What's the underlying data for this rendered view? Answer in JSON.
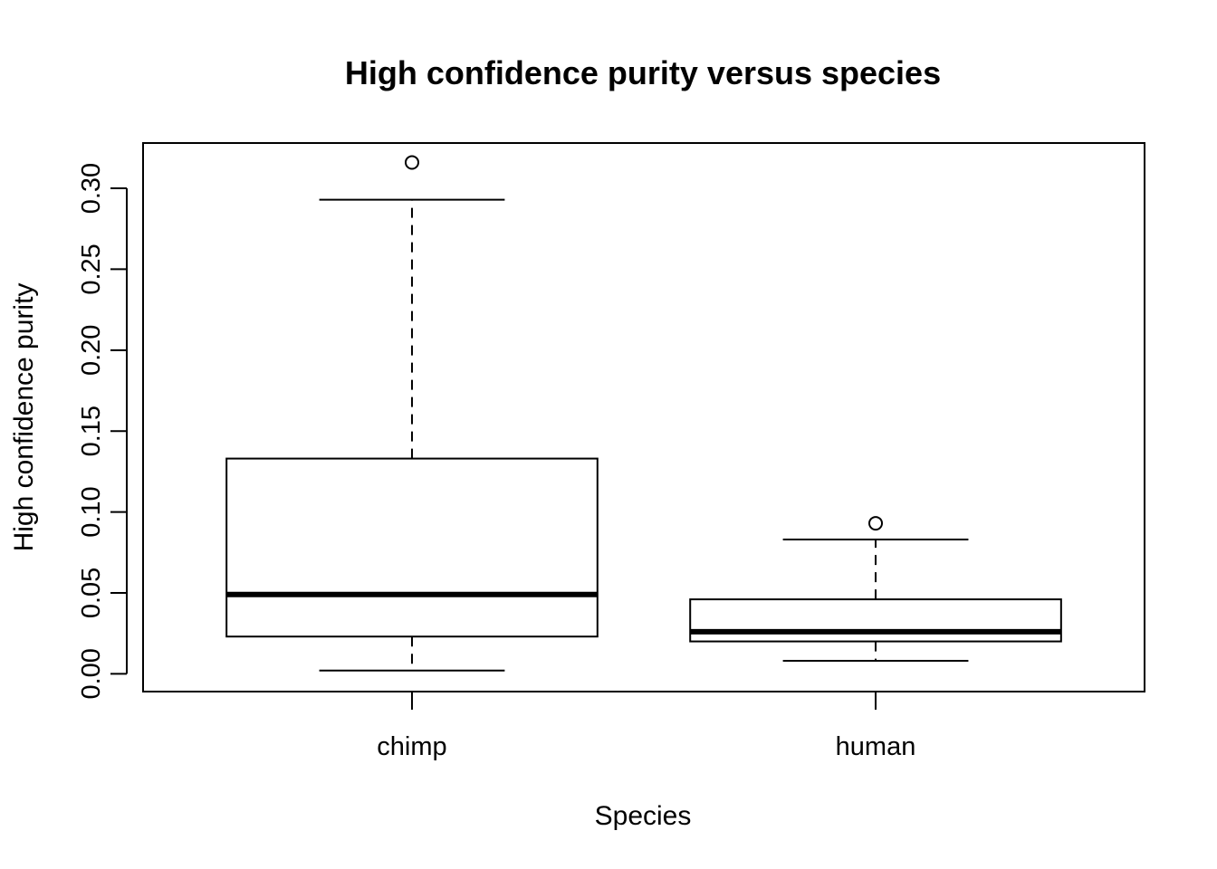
{
  "chart_data": {
    "type": "box",
    "title": "High confidence purity versus species",
    "xlabel": "Species",
    "ylabel": "High confidence purity",
    "categories": [
      "chimp",
      "human"
    ],
    "boxes": [
      {
        "category": "chimp",
        "min": 0.002,
        "q1": 0.023,
        "median": 0.049,
        "q3": 0.133,
        "max": 0.293,
        "outliers": [
          0.316
        ]
      },
      {
        "category": "human",
        "min": 0.008,
        "q1": 0.02,
        "median": 0.026,
        "q3": 0.046,
        "max": 0.083,
        "outliers": [
          0.093
        ]
      }
    ],
    "yticks": [
      0.0,
      0.05,
      0.1,
      0.15,
      0.2,
      0.25,
      0.3
    ],
    "ytick_labels": [
      "0.00",
      "0.05",
      "0.10",
      "0.15",
      "0.20",
      "0.25",
      "0.30"
    ],
    "ylim": [
      -0.011,
      0.328
    ],
    "grid": false,
    "legend": "none"
  }
}
